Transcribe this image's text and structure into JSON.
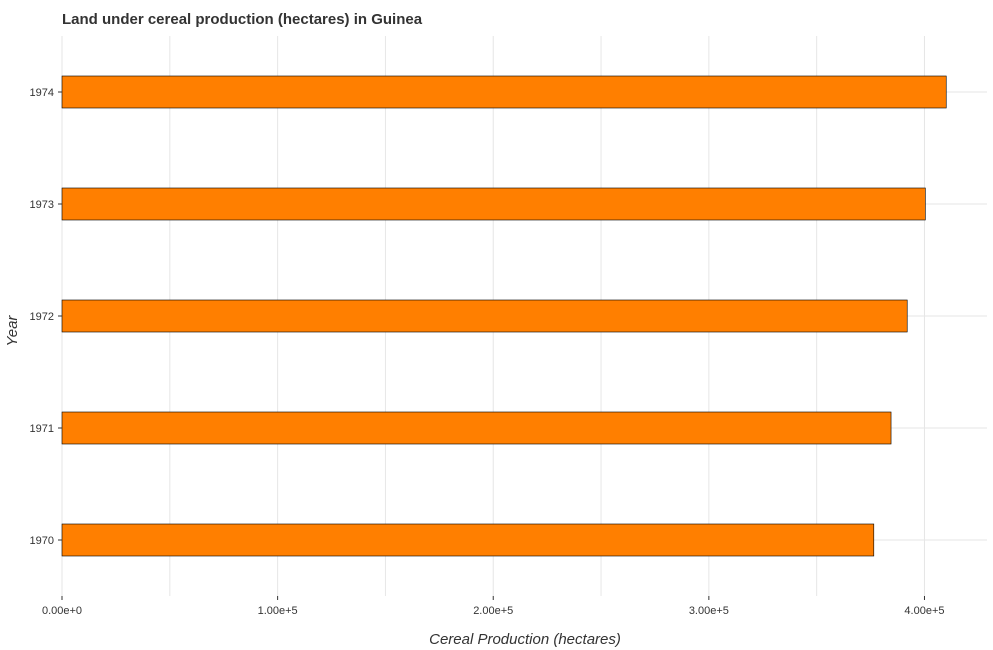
{
  "chart_data": {
    "type": "bar",
    "orientation": "horizontal",
    "title": "Land under cereal production (hectares) in Guinea",
    "xlabel": "Cereal Production (hectares)",
    "ylabel": "Year",
    "categories": [
      "1970",
      "1971",
      "1972",
      "1973",
      "1974"
    ],
    "values": [
      376500,
      384500,
      392000,
      400400,
      410100
    ],
    "xlim": [
      0,
      429000
    ],
    "xticks": [
      0,
      100000,
      200000,
      300000,
      400000
    ],
    "xtick_labels": [
      "0.00e+0",
      "1.00e+5",
      "2.00e+5",
      "3.00e+5",
      "4.00e+5"
    ],
    "bar_color": "#ff7f00",
    "grid": true,
    "legend": "none"
  }
}
